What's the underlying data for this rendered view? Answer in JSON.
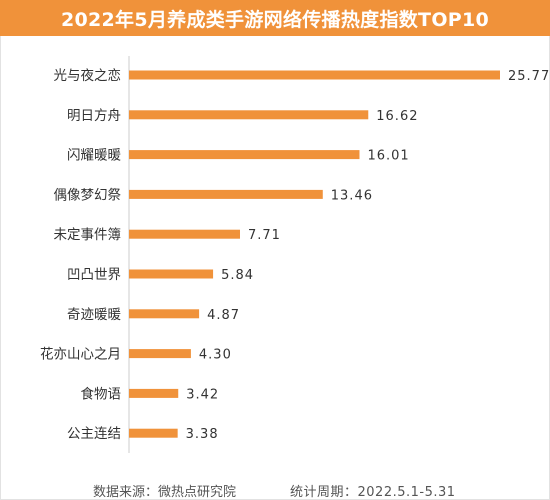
{
  "title": "2022年5月养成类手游网络传播热度指数TOP10",
  "footer": {
    "source": "数据来源：微热点研究院",
    "period": "统计周期：2022.5.1-5.31"
  },
  "colors": {
    "title_bg": "#f0923a",
    "bar": "#f0923a",
    "axis": "#cccccc",
    "text": "#333333"
  },
  "chart_data": {
    "type": "bar",
    "orientation": "horizontal",
    "title": "2022年5月养成类手游网络传播热度指数TOP10",
    "categories": [
      "光与夜之恋",
      "明日方舟",
      "闪耀暖暖",
      "偶像梦幻祭",
      "未定事件簿",
      "凹凸世界",
      "奇迹暖暖",
      "花亦山心之月",
      "食物语",
      "公主连结"
    ],
    "values": [
      25.77,
      16.62,
      16.01,
      13.46,
      7.71,
      5.84,
      4.87,
      4.3,
      3.42,
      3.38
    ],
    "value_labels": [
      "25.77",
      "16.62",
      "16.01",
      "13.46",
      "7.71",
      "5.84",
      "4.87",
      "4.30",
      "3.42",
      "3.38"
    ],
    "xlim": [
      0,
      25.77
    ],
    "grid": false,
    "legend": "none"
  }
}
